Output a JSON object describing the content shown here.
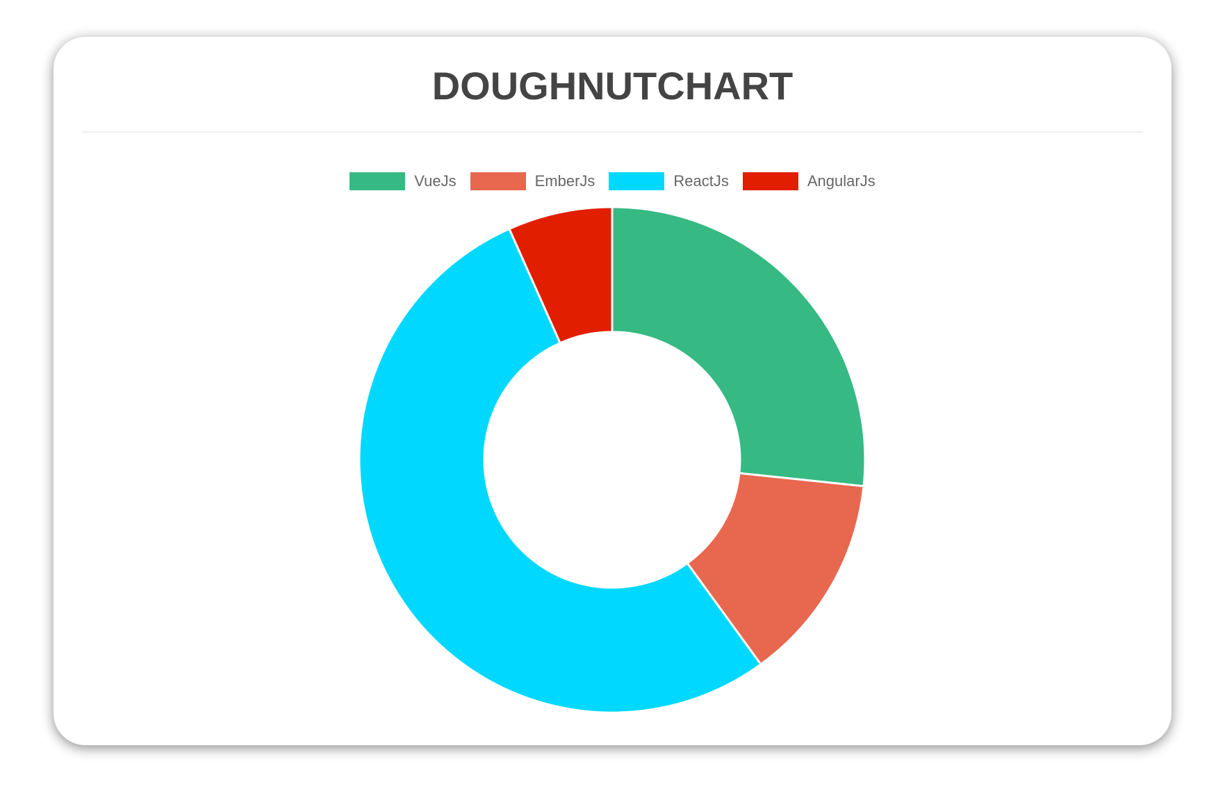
{
  "chart_data": {
    "type": "doughnut",
    "title": "DOUGHNUTCHART",
    "categories": [
      "VueJs",
      "EmberJs",
      "ReactJs",
      "AngularJs"
    ],
    "values": [
      40,
      20,
      80,
      10
    ],
    "colors": [
      "#36b983",
      "#e8674f",
      "#00d8ff",
      "#e21e00"
    ],
    "legend_position": "top"
  }
}
